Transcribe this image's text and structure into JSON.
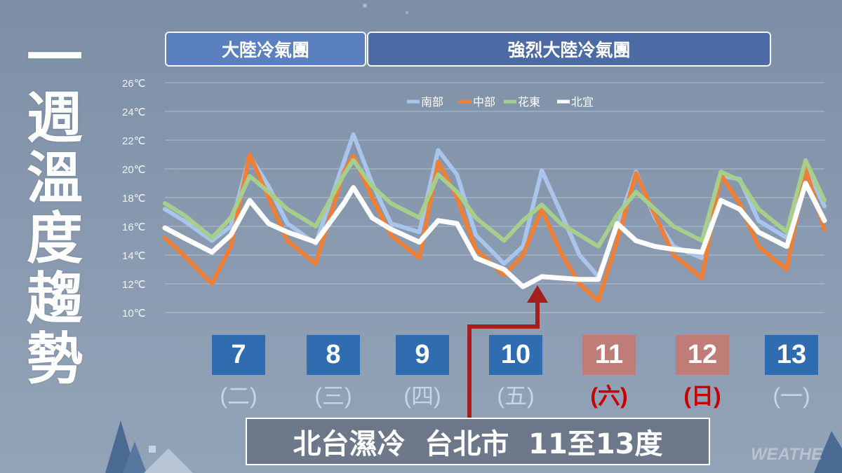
{
  "title_chars": [
    "一",
    "週",
    "溫",
    "度",
    "趨",
    "勢"
  ],
  "bands": [
    {
      "label": "大陸冷氣團"
    },
    {
      "label": "強烈大陸冷氣團"
    }
  ],
  "days": [
    {
      "date": "7",
      "weekday": "(二)",
      "weekend": false
    },
    {
      "date": "8",
      "weekday": "(三)",
      "weekend": false
    },
    {
      "date": "9",
      "weekday": "(四)",
      "weekend": false
    },
    {
      "date": "10",
      "weekday": "(五)",
      "weekend": false
    },
    {
      "date": "11",
      "weekday": "(六)",
      "weekend": true
    },
    {
      "date": "12",
      "weekday": "(日)",
      "weekend": true
    },
    {
      "date": "13",
      "weekday": "(一)",
      "weekend": false
    }
  ],
  "callout": "北台濕冷  台北市  11至13度",
  "watermark": "WEATHE",
  "colors": {
    "south": "#a9c5ec",
    "central": "#ee7f34",
    "east": "#a7cf8c",
    "north": "#ffffff",
    "arrow": "#a51d1d",
    "weekday_box": "#2f6cb0",
    "weekend_box": "#c07d78",
    "weekend_text": "#c80000"
  },
  "chart_data": {
    "type": "line",
    "ylim": [
      10,
      26
    ],
    "yticks": [
      "10℃",
      "12℃",
      "14℃",
      "16℃",
      "18℃",
      "20℃",
      "22℃",
      "24℃",
      "26℃"
    ],
    "xlim": [
      6.4,
      13.4
    ],
    "legend_position": "top-center",
    "grid": true,
    "series": [
      {
        "name": "南部",
        "color_key": "south",
        "points": [
          [
            6.4,
            17.2
          ],
          [
            6.6,
            16.4
          ],
          [
            6.9,
            15.0
          ],
          [
            7.1,
            16.0
          ],
          [
            7.3,
            20.9
          ],
          [
            7.5,
            18.8
          ],
          [
            7.7,
            16.2
          ],
          [
            8.0,
            14.8
          ],
          [
            8.3,
            20.5
          ],
          [
            8.4,
            22.4
          ],
          [
            8.6,
            19.0
          ],
          [
            8.8,
            16.2
          ],
          [
            9.1,
            15.6
          ],
          [
            9.3,
            21.3
          ],
          [
            9.5,
            19.6
          ],
          [
            9.7,
            15.4
          ],
          [
            10.0,
            13.4
          ],
          [
            10.2,
            14.6
          ],
          [
            10.4,
            19.9
          ],
          [
            10.6,
            17.0
          ],
          [
            10.8,
            14.0
          ],
          [
            11.0,
            12.5
          ],
          [
            11.2,
            16.0
          ],
          [
            11.4,
            19.8
          ],
          [
            11.6,
            16.6
          ],
          [
            11.8,
            14.6
          ],
          [
            12.1,
            13.8
          ],
          [
            12.3,
            19.5
          ],
          [
            12.5,
            19.3
          ],
          [
            12.7,
            16.4
          ],
          [
            13.0,
            15.2
          ],
          [
            13.2,
            20.2
          ],
          [
            13.4,
            17.4
          ]
        ]
      },
      {
        "name": "中部",
        "color_key": "central",
        "points": [
          [
            6.4,
            15.2
          ],
          [
            6.6,
            14.0
          ],
          [
            6.9,
            12.0
          ],
          [
            7.1,
            14.6
          ],
          [
            7.3,
            21.0
          ],
          [
            7.5,
            18.0
          ],
          [
            7.7,
            15.0
          ],
          [
            8.0,
            13.4
          ],
          [
            8.3,
            19.8
          ],
          [
            8.4,
            20.9
          ],
          [
            8.6,
            18.0
          ],
          [
            8.8,
            15.4
          ],
          [
            9.1,
            13.8
          ],
          [
            9.3,
            20.5
          ],
          [
            9.5,
            18.0
          ],
          [
            9.7,
            14.4
          ],
          [
            10.0,
            12.6
          ],
          [
            10.2,
            14.0
          ],
          [
            10.4,
            17.2
          ],
          [
            10.6,
            14.2
          ],
          [
            10.8,
            12.0
          ],
          [
            11.0,
            10.8
          ],
          [
            11.2,
            15.0
          ],
          [
            11.4,
            19.7
          ],
          [
            11.6,
            16.8
          ],
          [
            11.8,
            14.0
          ],
          [
            12.1,
            12.4
          ],
          [
            12.3,
            19.6
          ],
          [
            12.5,
            17.6
          ],
          [
            12.7,
            14.6
          ],
          [
            13.0,
            13.0
          ],
          [
            13.2,
            20.0
          ],
          [
            13.4,
            15.8
          ]
        ]
      },
      {
        "name": "花東",
        "color_key": "east",
        "points": [
          [
            6.4,
            17.6
          ],
          [
            6.6,
            16.8
          ],
          [
            6.9,
            15.2
          ],
          [
            7.1,
            16.6
          ],
          [
            7.3,
            19.5
          ],
          [
            7.5,
            18.4
          ],
          [
            7.7,
            17.2
          ],
          [
            8.0,
            16.0
          ],
          [
            8.3,
            19.6
          ],
          [
            8.4,
            20.6
          ],
          [
            8.6,
            18.8
          ],
          [
            8.8,
            17.6
          ],
          [
            9.1,
            16.6
          ],
          [
            9.3,
            19.6
          ],
          [
            9.5,
            18.4
          ],
          [
            9.7,
            16.6
          ],
          [
            10.0,
            15.0
          ],
          [
            10.2,
            16.4
          ],
          [
            10.4,
            17.5
          ],
          [
            10.6,
            16.2
          ],
          [
            10.8,
            15.4
          ],
          [
            11.0,
            14.6
          ],
          [
            11.2,
            16.8
          ],
          [
            11.4,
            18.4
          ],
          [
            11.6,
            17.2
          ],
          [
            11.8,
            16.0
          ],
          [
            12.1,
            15.0
          ],
          [
            12.3,
            19.8
          ],
          [
            12.5,
            19.2
          ],
          [
            12.7,
            17.2
          ],
          [
            13.0,
            15.6
          ],
          [
            13.2,
            20.6
          ],
          [
            13.4,
            17.8
          ]
        ]
      },
      {
        "name": "北宜",
        "color_key": "north",
        "points": [
          [
            6.4,
            15.9
          ],
          [
            6.6,
            15.2
          ],
          [
            6.9,
            14.2
          ],
          [
            7.1,
            15.4
          ],
          [
            7.3,
            17.8
          ],
          [
            7.5,
            16.2
          ],
          [
            7.7,
            15.6
          ],
          [
            8.0,
            14.9
          ],
          [
            8.3,
            17.6
          ],
          [
            8.4,
            18.7
          ],
          [
            8.6,
            16.6
          ],
          [
            8.8,
            15.8
          ],
          [
            9.1,
            14.9
          ],
          [
            9.3,
            16.4
          ],
          [
            9.5,
            16.2
          ],
          [
            9.7,
            13.8
          ],
          [
            10.0,
            13.0
          ],
          [
            10.2,
            11.8
          ],
          [
            10.4,
            12.5
          ],
          [
            10.6,
            12.4
          ],
          [
            10.8,
            12.3
          ],
          [
            11.0,
            12.3
          ],
          [
            11.2,
            16.2
          ],
          [
            11.4,
            15.0
          ],
          [
            11.6,
            14.6
          ],
          [
            11.8,
            14.4
          ],
          [
            12.1,
            14.2
          ],
          [
            12.3,
            17.8
          ],
          [
            12.5,
            17.2
          ],
          [
            12.7,
            15.6
          ],
          [
            13.0,
            14.6
          ],
          [
            13.2,
            19.0
          ],
          [
            13.4,
            16.4
          ]
        ]
      }
    ]
  }
}
